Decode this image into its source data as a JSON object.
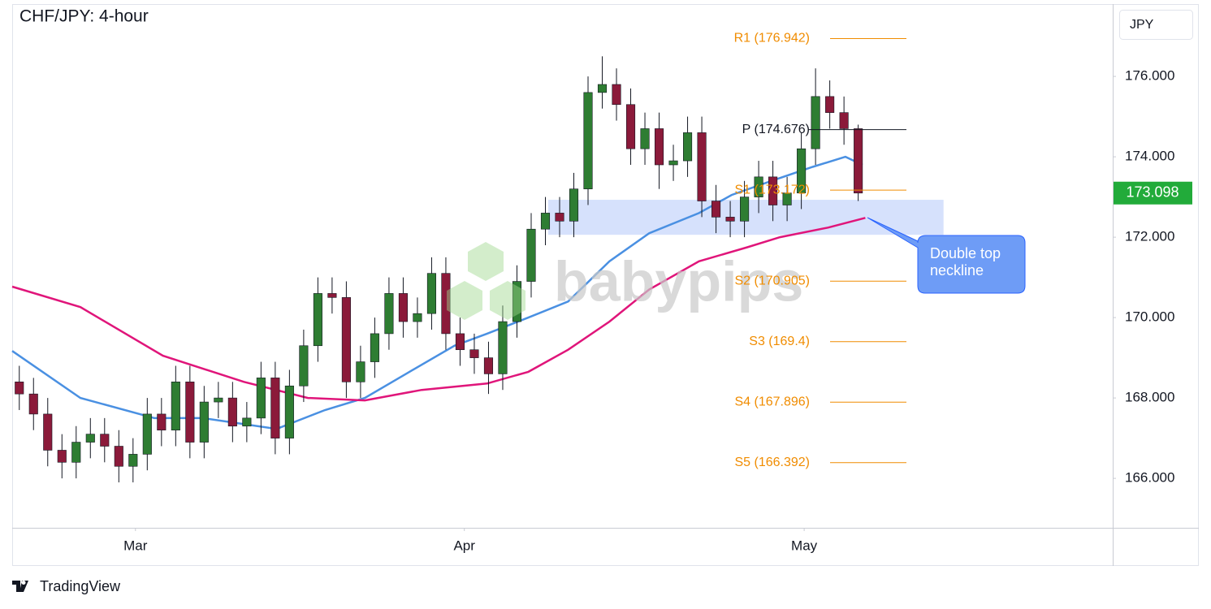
{
  "chart_data": {
    "type": "candlestick",
    "title": "CHF/JPY: 4-hour",
    "currency": "JPY",
    "watermark": "babypips",
    "brand": "TradingView",
    "up_color": "#2e7d32",
    "down_color": "#8b1a3a",
    "grid": false,
    "x": [
      0,
      1,
      2,
      3,
      4,
      5,
      6,
      7,
      8,
      9,
      10,
      11,
      12,
      13,
      14,
      15,
      16,
      17,
      18,
      19,
      20,
      21,
      22,
      23,
      24,
      25,
      26,
      27,
      28,
      29,
      30,
      31,
      32,
      33,
      34,
      35,
      36,
      37,
      38,
      39,
      40,
      41,
      42,
      43,
      44,
      45,
      46,
      47,
      48,
      49,
      50,
      51,
      52,
      53,
      54,
      55,
      56,
      57,
      58,
      59
    ],
    "open": [
      168.4,
      168.1,
      167.6,
      166.7,
      166.4,
      166.9,
      167.1,
      166.8,
      166.3,
      166.6,
      167.6,
      167.2,
      168.4,
      166.9,
      167.9,
      168.0,
      167.3,
      167.5,
      168.5,
      167.0,
      168.3,
      169.3,
      170.6,
      170.5,
      168.4,
      168.9,
      169.6,
      170.6,
      169.9,
      170.1,
      171.1,
      169.6,
      169.2,
      169.0,
      168.6,
      169.9,
      170.9,
      172.2,
      172.6,
      172.4,
      173.2,
      175.6,
      175.8,
      175.3,
      174.2,
      174.7,
      173.8,
      173.9,
      174.6,
      172.9,
      172.5,
      172.4,
      173.0,
      173.5,
      172.8,
      173.1,
      174.2,
      175.5,
      175.1,
      174.7
    ],
    "high": [
      168.8,
      168.5,
      168.0,
      167.1,
      167.3,
      167.5,
      167.5,
      167.2,
      167.0,
      168.0,
      168.0,
      168.8,
      168.8,
      168.3,
      168.4,
      168.4,
      167.9,
      168.9,
      168.9,
      168.7,
      169.7,
      171.0,
      171.0,
      170.9,
      169.3,
      170.0,
      171.0,
      171.0,
      170.5,
      171.5,
      171.5,
      170.0,
      169.6,
      169.4,
      170.3,
      171.3,
      172.6,
      173.0,
      173.0,
      173.6,
      176.0,
      176.5,
      176.2,
      175.7,
      175.1,
      175.1,
      174.3,
      175.0,
      175.0,
      173.3,
      172.9,
      173.4,
      173.9,
      173.9,
      173.5,
      174.6,
      176.2,
      175.9,
      175.5,
      174.8
    ],
    "low": [
      167.7,
      167.2,
      166.3,
      166.0,
      166.0,
      166.5,
      166.4,
      165.9,
      165.9,
      166.2,
      166.8,
      166.8,
      166.5,
      166.5,
      167.5,
      166.9,
      166.9,
      167.1,
      166.6,
      166.6,
      167.9,
      168.9,
      170.1,
      168.0,
      168.0,
      168.5,
      169.2,
      169.5,
      169.5,
      169.7,
      169.2,
      168.8,
      168.6,
      168.1,
      168.2,
      169.5,
      170.5,
      171.8,
      172.0,
      172.0,
      172.8,
      175.2,
      174.9,
      173.8,
      173.8,
      173.2,
      173.4,
      173.5,
      172.5,
      172.1,
      172.0,
      172.0,
      172.6,
      172.4,
      172.4,
      172.7,
      173.8,
      174.7,
      174.3,
      172.9
    ],
    "close": [
      168.1,
      167.6,
      166.7,
      166.4,
      166.9,
      167.1,
      166.8,
      166.3,
      166.6,
      167.6,
      167.2,
      168.4,
      166.9,
      167.9,
      168.0,
      167.3,
      167.5,
      168.5,
      167.0,
      168.3,
      169.3,
      170.6,
      170.5,
      168.4,
      168.9,
      169.6,
      170.6,
      169.9,
      170.1,
      171.1,
      169.6,
      169.2,
      169.0,
      168.6,
      169.9,
      170.9,
      172.2,
      172.6,
      172.4,
      173.2,
      175.6,
      175.8,
      175.3,
      174.2,
      174.7,
      173.8,
      173.9,
      174.6,
      172.9,
      172.5,
      172.4,
      173.0,
      173.5,
      172.8,
      173.1,
      174.2,
      175.5,
      175.1,
      174.7,
      173.098
    ],
    "lines": [
      {
        "color": "#4a90e2",
        "x": [
          -0.5,
          4.3,
          9.5,
          12.9,
          18.1,
          21.5,
          24.3,
          27.2,
          30.6,
          32.9,
          35.8,
          38.6,
          41.5,
          44.3,
          47.8,
          50.1,
          52.9,
          55.8,
          58.1,
          59.3
        ],
        "values": [
          169.17,
          168.0,
          167.5,
          167.5,
          167.23,
          167.7,
          168.0,
          168.6,
          169.3,
          169.6,
          170.0,
          170.4,
          171.4,
          172.1,
          172.6,
          173.05,
          173.4,
          173.75,
          174.0,
          173.8
        ]
      },
      {
        "color": "#e0157a",
        "x": [
          -0.5,
          4.3,
          10.1,
          15.8,
          20.3,
          24.3,
          28.3,
          32.9,
          35.8,
          38.6,
          41.5,
          44.3,
          47.8,
          51.2,
          53.5,
          56.9,
          59.5
        ],
        "values": [
          170.77,
          170.26,
          169.05,
          168.4,
          168.0,
          167.94,
          168.2,
          168.36,
          168.65,
          169.2,
          169.9,
          170.7,
          171.4,
          171.75,
          172.0,
          172.24,
          172.48
        ]
      }
    ],
    "levels": [
      {
        "label": "R1 (176.942)",
        "value": 176.942,
        "color": "#f08c00"
      },
      {
        "label": "P (174.676)",
        "value": 174.676,
        "color": "#131722"
      },
      {
        "label": "S1 (173.172)",
        "value": 173.172,
        "color": "#f08c00"
      },
      {
        "label": "S2 (170.905)",
        "value": 170.905,
        "color": "#f08c00"
      },
      {
        "label": "S3 (169.4)",
        "value": 169.4,
        "color": "#f08c00"
      },
      {
        "label": "S4 (167.896)",
        "value": 167.896,
        "color": "#f08c00"
      },
      {
        "label": "S5 (166.392)",
        "value": 166.392,
        "color": "#f08c00"
      }
    ],
    "zone": {
      "xlim": [
        37.2,
        65.0
      ],
      "ylim": [
        172.06,
        172.93
      ],
      "color": "#cfdcfb"
    },
    "annotation": "Double top neckline",
    "xlim": [
      -0.5,
      76.9
    ],
    "xticks": [
      {
        "value": 8.17,
        "label": "Mar"
      },
      {
        "value": 31.3,
        "label": "Apr"
      },
      {
        "value": 55.2,
        "label": "May"
      }
    ],
    "ylim": [
      164.77,
      177.8
    ],
    "yticks": [
      {
        "value": 166,
        "label": "166.000"
      },
      {
        "value": 168,
        "label": "168.000"
      },
      {
        "value": 170,
        "label": "170.000"
      },
      {
        "value": 172,
        "label": "172.000"
      },
      {
        "value": 174,
        "label": "174.000"
      },
      {
        "value": 176,
        "label": "176.000"
      }
    ]
  }
}
